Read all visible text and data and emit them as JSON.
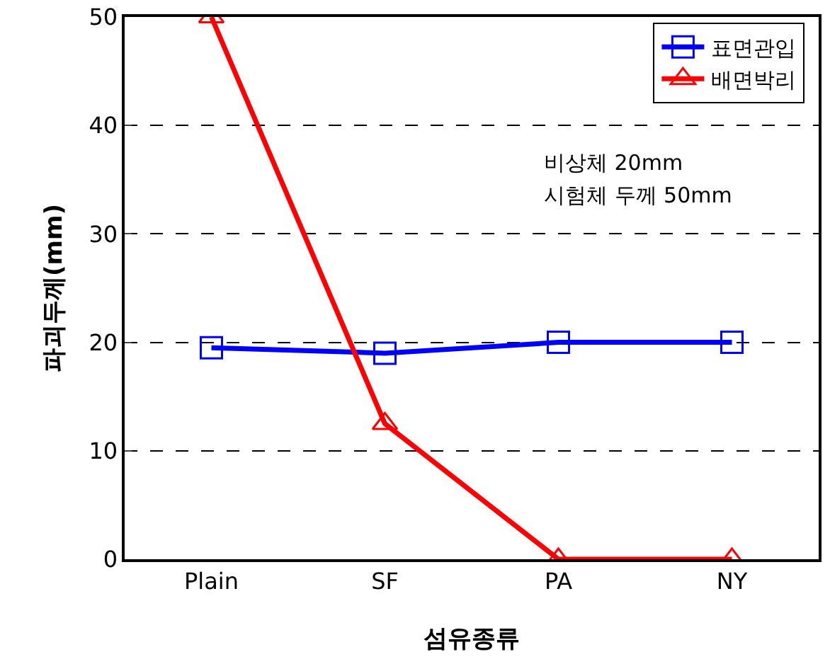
{
  "chart_data": {
    "type": "line",
    "xlabel": "섬유종류",
    "ylabel": "파괴두께(mm)",
    "categories": [
      "Plain",
      "SF",
      "PA",
      "NY"
    ],
    "series": [
      {
        "name": "표면관입",
        "color": "#0000ff",
        "values": [
          19.5,
          19,
          20,
          20
        ],
        "marker": "square"
      },
      {
        "name": "배면박리",
        "color": "#ff0000",
        "values": [
          50,
          12.5,
          0,
          0
        ],
        "marker": "triangle"
      }
    ],
    "ylim": [
      0,
      50
    ],
    "yticks": [
      0,
      10,
      20,
      30,
      40,
      50
    ],
    "grid": "y",
    "legend": "top right",
    "line_style": "solid",
    "annotations": [
      "비상체 20mm",
      "시험체 두께 50mm"
    ]
  }
}
